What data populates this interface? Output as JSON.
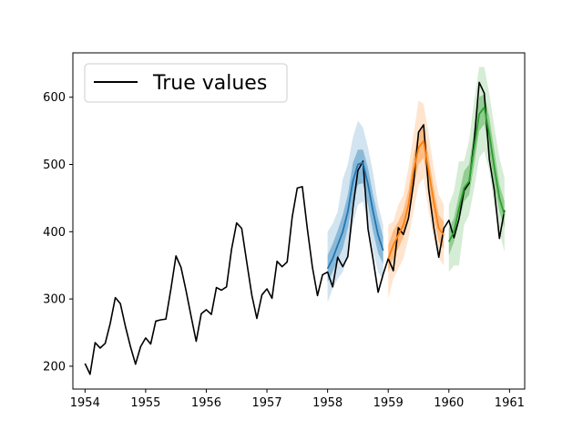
{
  "chart_data": {
    "type": "line",
    "title": "",
    "xlabel": "",
    "ylabel": "",
    "xlim": [
      1953.8,
      1961.25
    ],
    "ylim": [
      166,
      666
    ],
    "xticks": [
      1954,
      1955,
      1956,
      1957,
      1958,
      1959,
      1960,
      1961
    ],
    "xtick_labels": [
      "1954",
      "1955",
      "1956",
      "1957",
      "1958",
      "1959",
      "1960",
      "1961"
    ],
    "yticks": [
      200,
      300,
      400,
      500,
      600
    ],
    "ytick_labels": [
      "200",
      "300",
      "400",
      "500",
      "600"
    ],
    "grid": false,
    "legend": {
      "placement": "top-left",
      "entries": [
        {
          "label": "True values",
          "color": "#000000"
        }
      ]
    },
    "true_values": {
      "name": "True values",
      "color": "#000000",
      "x": [
        1954.0,
        1954.0833,
        1954.1667,
        1954.25,
        1954.3333,
        1954.4167,
        1954.5,
        1954.5833,
        1954.6667,
        1954.75,
        1954.8333,
        1954.9167,
        1955.0,
        1955.0833,
        1955.1667,
        1955.25,
        1955.3333,
        1955.4167,
        1955.5,
        1955.5833,
        1955.6667,
        1955.75,
        1955.8333,
        1955.9167,
        1956.0,
        1956.0833,
        1956.1667,
        1956.25,
        1956.3333,
        1956.4167,
        1956.5,
        1956.5833,
        1956.6667,
        1956.75,
        1956.8333,
        1956.9167,
        1957.0,
        1957.0833,
        1957.1667,
        1957.25,
        1957.3333,
        1957.4167,
        1957.5,
        1957.5833,
        1957.6667,
        1957.75,
        1957.8333,
        1957.9167,
        1958.0,
        1958.0833,
        1958.1667,
        1958.25,
        1958.3333,
        1958.4167,
        1958.5,
        1958.5833,
        1958.6667,
        1958.75,
        1958.8333,
        1958.9167,
        1959.0,
        1959.0833,
        1959.1667,
        1959.25,
        1959.3333,
        1959.4167,
        1959.5,
        1959.5833,
        1959.6667,
        1959.75,
        1959.8333,
        1959.9167,
        1960.0,
        1960.0833,
        1960.1667,
        1960.25,
        1960.3333,
        1960.4167,
        1960.5,
        1960.5833,
        1960.6667,
        1960.75,
        1960.8333,
        1960.9167
      ],
      "y": [
        204,
        188,
        235,
        227,
        234,
        264,
        302,
        293,
        259,
        229,
        203,
        229,
        242,
        233,
        267,
        269,
        270,
        315,
        364,
        347,
        312,
        274,
        237,
        278,
        284,
        277,
        317,
        313,
        318,
        374,
        413,
        405,
        355,
        306,
        271,
        306,
        315,
        301,
        356,
        348,
        355,
        422,
        465,
        467,
        404,
        347,
        305,
        336,
        340,
        318,
        362,
        348,
        363,
        435,
        491,
        505,
        404,
        359,
        310,
        337,
        360,
        342,
        406,
        396,
        420,
        472,
        548,
        559,
        463,
        407,
        362,
        405,
        417,
        391,
        419,
        461,
        472,
        535,
        622,
        606,
        508,
        461,
        390,
        432
      ]
    },
    "forecasts": [
      {
        "color": "#1f77b4",
        "x": [
          1958.0,
          1958.0833,
          1958.1667,
          1958.25,
          1958.3333,
          1958.4167,
          1958.5,
          1958.5833,
          1958.6667,
          1958.75,
          1958.8333,
          1958.9167
        ],
        "median": [
          345,
          360,
          380,
          400,
          430,
          475,
          500,
          503,
          470,
          430,
          395,
          372
        ],
        "inner_low": [
          325,
          340,
          358,
          375,
          405,
          445,
          470,
          472,
          440,
          400,
          368,
          352
        ],
        "inner_high": [
          365,
          382,
          402,
          425,
          455,
          502,
          522,
          522,
          495,
          455,
          420,
          392
        ],
        "outer_low": [
          295,
          315,
          330,
          340,
          365,
          410,
          440,
          445,
          410,
          370,
          340,
          328
        ],
        "outer_high": [
          400,
          412,
          430,
          478,
          500,
          540,
          565,
          555,
          525,
          488,
          440,
          410
        ]
      },
      {
        "color": "#ff7f0e",
        "x": [
          1959.0,
          1959.0833,
          1959.1667,
          1959.25,
          1959.3333,
          1959.4167,
          1959.5,
          1959.5833,
          1959.6667,
          1959.75,
          1959.8333,
          1959.9167
        ],
        "median": [
          360,
          380,
          395,
          410,
          440,
          490,
          525,
          535,
          490,
          445,
          405,
          395
        ],
        "inner_low": [
          340,
          360,
          375,
          392,
          420,
          465,
          500,
          510,
          465,
          420,
          385,
          375
        ],
        "inner_high": [
          380,
          402,
          415,
          432,
          462,
          512,
          548,
          555,
          512,
          465,
          425,
          415
        ],
        "outer_low": [
          300,
          330,
          345,
          360,
          390,
          430,
          470,
          480,
          430,
          390,
          360,
          350
        ],
        "outer_high": [
          410,
          415,
          440,
          455,
          495,
          545,
          595,
          590,
          545,
          495,
          455,
          440
        ]
      },
      {
        "color": "#2ca02c",
        "x": [
          1960.0,
          1960.0833,
          1960.1667,
          1960.25,
          1960.3333,
          1960.4167,
          1960.5,
          1960.5833,
          1960.6667,
          1960.75,
          1960.8333,
          1960.9167
        ],
        "median": [
          385,
          400,
          435,
          465,
          475,
          525,
          575,
          585,
          545,
          495,
          450,
          425
        ],
        "inner_low": [
          365,
          385,
          415,
          445,
          455,
          500,
          550,
          560,
          520,
          470,
          430,
          405
        ],
        "inner_high": [
          405,
          420,
          455,
          490,
          500,
          550,
          600,
          605,
          570,
          520,
          470,
          445
        ],
        "outer_low": [
          340,
          350,
          350,
          410,
          425,
          465,
          510,
          520,
          490,
          440,
          400,
          370
        ],
        "outer_high": [
          440,
          460,
          505,
          505,
          535,
          595,
          645,
          645,
          605,
          555,
          510,
          480
        ]
      }
    ]
  }
}
